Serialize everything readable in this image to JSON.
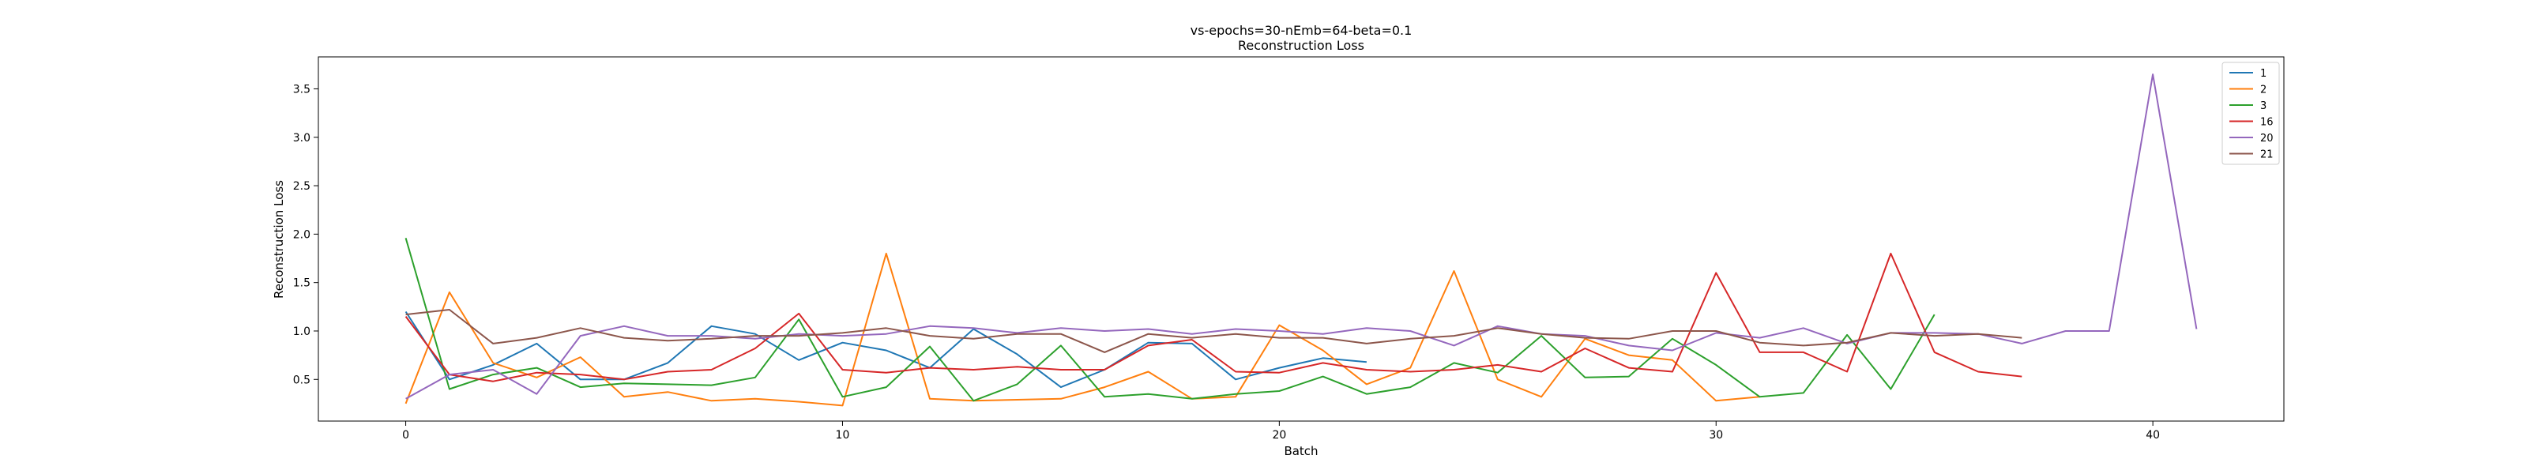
{
  "chart_data": {
    "type": "line",
    "title": "vs-epochs=30-nEmb=64-beta=0.1",
    "subtitle": "Reconstruction Loss",
    "xlabel": "Batch",
    "ylabel": "Reconstruction Loss",
    "xlim": [
      -2,
      43
    ],
    "ylim": [
      0.07,
      3.83
    ],
    "xticks": [
      0,
      10,
      20,
      30,
      40
    ],
    "yticks": [
      0.5,
      1.0,
      1.5,
      2.0,
      2.5,
      3.0,
      3.5
    ],
    "ytick_labels": [
      "0.5",
      "1.0",
      "1.5",
      "2.0",
      "2.5",
      "3.0",
      "3.5"
    ],
    "grid": false,
    "legend_position": "top-right",
    "series": [
      {
        "name": "1",
        "color": "#1f77b4",
        "values": [
          1.2,
          0.5,
          0.65,
          0.87,
          0.5,
          0.5,
          0.67,
          1.05,
          0.97,
          0.7,
          0.88,
          0.8,
          0.62,
          1.02,
          0.76,
          0.42,
          0.6,
          0.88,
          0.87,
          0.5,
          0.62,
          0.72,
          0.68
        ]
      },
      {
        "name": "2",
        "color": "#ff7f0e",
        "values": [
          0.25,
          1.4,
          0.67,
          0.52,
          0.73,
          0.32,
          0.37,
          0.28,
          0.3,
          0.27,
          0.23,
          1.8,
          0.3,
          0.28,
          0.29,
          0.3,
          0.42,
          0.58,
          0.3,
          0.32,
          1.06,
          0.8,
          0.45,
          0.62,
          1.62,
          0.5,
          0.32,
          0.92,
          0.75,
          0.7,
          0.28,
          0.32
        ]
      },
      {
        "name": "3",
        "color": "#2ca02c",
        "values": [
          1.96,
          0.4,
          0.55,
          0.62,
          0.42,
          0.46,
          0.45,
          0.44,
          0.52,
          1.12,
          0.32,
          0.42,
          0.84,
          0.28,
          0.45,
          0.85,
          0.32,
          0.35,
          0.3,
          0.35,
          0.38,
          0.53,
          0.35,
          0.42,
          0.67,
          0.57,
          0.95,
          0.52,
          0.53,
          0.92,
          0.65,
          0.32,
          0.36,
          0.96,
          0.4,
          1.17
        ]
      },
      {
        "name": "16",
        "color": "#d62728",
        "values": [
          1.15,
          0.55,
          0.48,
          0.57,
          0.55,
          0.5,
          0.58,
          0.6,
          0.82,
          1.18,
          0.6,
          0.57,
          0.62,
          0.6,
          0.63,
          0.6,
          0.6,
          0.85,
          0.91,
          0.58,
          0.57,
          0.67,
          0.6,
          0.58,
          0.6,
          0.65,
          0.58,
          0.82,
          0.62,
          0.58,
          1.6,
          0.78,
          0.78,
          0.58,
          1.8,
          0.78,
          0.58,
          0.53
        ]
      },
      {
        "name": "20",
        "color": "#9467bd",
        "values": [
          0.3,
          0.55,
          0.6,
          0.35,
          0.95,
          1.05,
          0.95,
          0.95,
          0.92,
          0.97,
          0.95,
          0.97,
          1.05,
          1.03,
          0.98,
          1.03,
          1.0,
          1.02,
          0.97,
          1.02,
          1.0,
          0.97,
          1.03,
          1.0,
          0.85,
          1.05,
          0.97,
          0.95,
          0.85,
          0.8,
          0.98,
          0.93,
          1.03,
          0.87,
          0.98,
          0.98,
          0.97,
          0.87,
          1.0,
          1.0,
          3.65,
          1.02
        ]
      },
      {
        "name": "21",
        "color": "#8c564b",
        "values": [
          1.17,
          1.22,
          0.87,
          0.93,
          1.03,
          0.93,
          0.9,
          0.92,
          0.95,
          0.95,
          0.98,
          1.03,
          0.95,
          0.92,
          0.97,
          0.97,
          0.78,
          0.97,
          0.93,
          0.97,
          0.93,
          0.93,
          0.87,
          0.92,
          0.95,
          1.03,
          0.97,
          0.93,
          0.92,
          1.0,
          1.0,
          0.88,
          0.85,
          0.88,
          0.98,
          0.95,
          0.97,
          0.93
        ]
      }
    ]
  }
}
